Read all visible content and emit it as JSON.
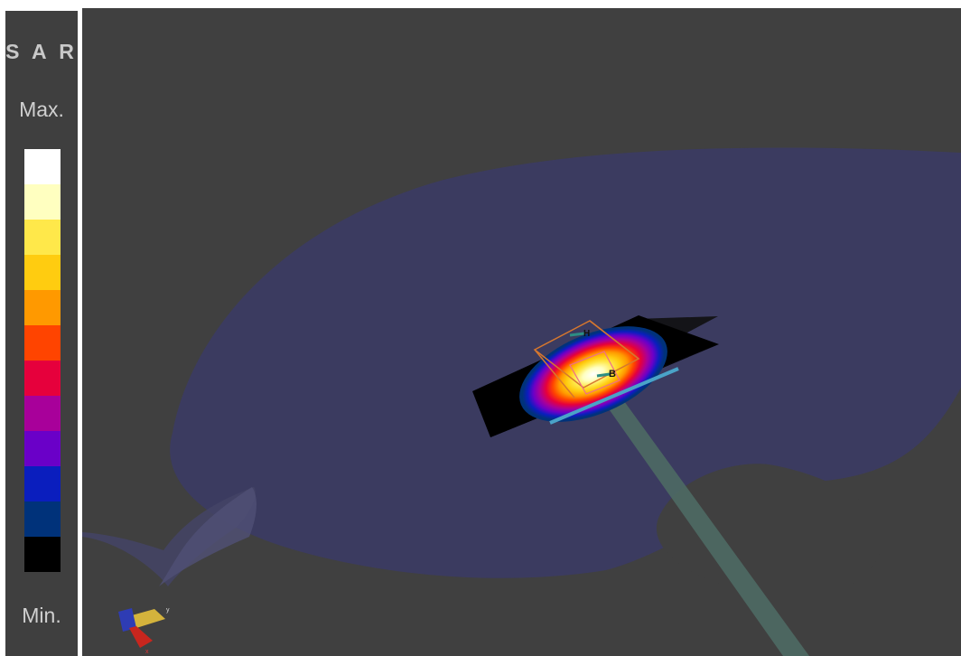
{
  "legend": {
    "title": "S A R",
    "max_label": "Max.",
    "min_label": "Min.",
    "colors": [
      "#ffffff",
      "#ffffc0",
      "#ffe84a",
      "#ffcc10",
      "#ff9900",
      "#ff4400",
      "#e6003c",
      "#a8009a",
      "#6a00c8",
      "#0a1ebe",
      "#00327a",
      "#000000"
    ]
  },
  "scene": {
    "background": "#404040",
    "marker_h": "H",
    "marker_b": "B",
    "axis_y": "y",
    "axis_x": "x"
  }
}
